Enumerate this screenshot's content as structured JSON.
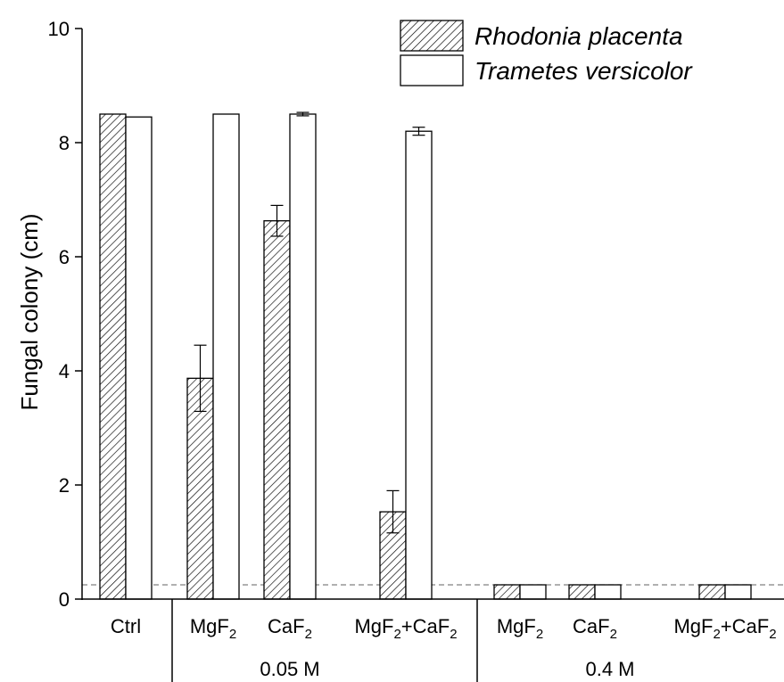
{
  "chart_data": {
    "type": "bar",
    "title": "",
    "xlabel": "",
    "ylabel": "Fungal colony (cm)",
    "ylim": [
      0,
      10
    ],
    "yticks": [
      "0",
      "2",
      "4",
      "6",
      "8",
      "10"
    ],
    "grid": false,
    "legend_position": "top-right",
    "categories": [
      {
        "base": "Ctrl",
        "sub": "",
        "suffix": ""
      },
      {
        "base": "MgF",
        "sub": "2",
        "suffix": ""
      },
      {
        "base": "CaF",
        "sub": "2",
        "suffix": ""
      },
      {
        "base": "MgF",
        "sub": "2",
        "suffix": "+CaF",
        "sub2": "2"
      },
      {
        "base": "MgF",
        "sub": "2",
        "suffix": ""
      },
      {
        "base": "CaF",
        "sub": "2",
        "suffix": ""
      },
      {
        "base": "MgF",
        "sub": "2",
        "suffix": "+CaF",
        "sub2": "2"
      }
    ],
    "groups": [
      {
        "label": "0.05 M",
        "category_indices": [
          1,
          2,
          3
        ]
      },
      {
        "label": "0.4 M",
        "category_indices": [
          4,
          5,
          6
        ]
      }
    ],
    "series": [
      {
        "name": "Rhodonia placenta",
        "pattern": "hatched",
        "values": [
          8.5,
          3.87,
          6.63,
          1.53,
          0.25,
          0.25,
          0.25
        ],
        "errors": [
          0,
          0.58,
          0.27,
          0.37,
          0,
          0,
          0
        ]
      },
      {
        "name": "Trametes versicolor",
        "pattern": "open",
        "values": [
          8.45,
          8.5,
          8.5,
          8.2,
          0.25,
          0.25,
          0.25
        ],
        "errors": [
          0,
          0,
          0.03,
          0.07,
          0,
          0,
          0
        ]
      }
    ],
    "reference_line": {
      "y": 0.25,
      "style": "dashed"
    },
    "colors": {
      "axis": "#000000",
      "hatch": "#000000",
      "bar_fill": "#ffffff",
      "reference": "#808080"
    }
  }
}
